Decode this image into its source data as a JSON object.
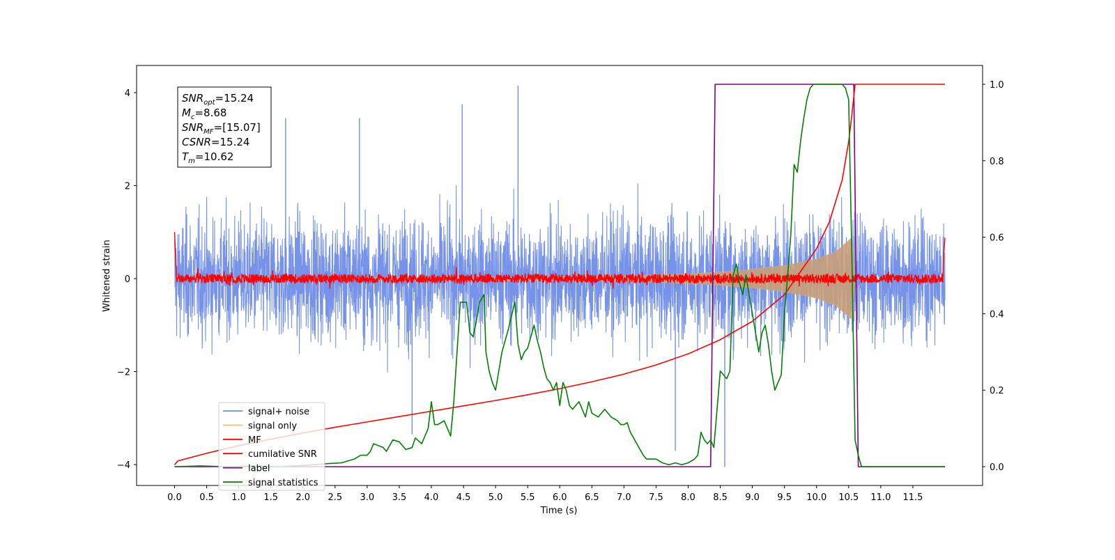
{
  "chart_data": {
    "type": "line",
    "xlabel": "Time (s)",
    "ylabel": "Whitened strain",
    "xlim": [
      -0.6,
      12.6
    ],
    "ylim": [
      -4.45,
      4.55
    ],
    "ylim_right": [
      -0.05,
      1.05
    ],
    "grid": false,
    "legend_position": "lower-left",
    "x_ticks": [
      "0.0",
      "0.5",
      "1.0",
      "1.5",
      "2.0",
      "2.5",
      "3.0",
      "3.5",
      "4.0",
      "4.5",
      "5.0",
      "5.5",
      "6.0",
      "6.5",
      "7.0",
      "7.5",
      "8.0",
      "8.5",
      "9.0",
      "9.5",
      "10.0",
      "10.5",
      "11.0",
      "11.5"
    ],
    "y_ticks_left": [
      "4",
      "2",
      "0",
      "−2",
      "−4"
    ],
    "y_ticks_right": [
      "1.0",
      "0.8",
      "0.6",
      "0.4",
      "0.2",
      "0.0"
    ],
    "info_box": {
      "snr_opt": {
        "sym": "SNR",
        "sub": "opt",
        "val": "=15.24"
      },
      "mc": {
        "sym": "M",
        "sub": "c",
        "val": "=8.68"
      },
      "snr_mf": {
        "sym": "SNR",
        "sub": "MF",
        "val": "=[15.07]"
      },
      "csnr": {
        "sym": "CSNR",
        "sub": "",
        "val": "=15.24"
      },
      "tm": {
        "sym": "T",
        "sub": "m",
        "val": "=10.62"
      }
    },
    "series": [
      {
        "name": "signal+ noise",
        "color": "#6f8de8",
        "axis": "left",
        "description_of_values": "white noise, amplitude about ±2 (peaks to ±4) over 0–12 s",
        "noise_peak_max": 4.15,
        "noise_peak_min": -3.7
      },
      {
        "name": "signal only",
        "color": "#fdbf6f",
        "axis": "left",
        "envelope_x": [
          0,
          6.0,
          7.0,
          8.0,
          8.5,
          9.0,
          9.5,
          10.0,
          10.3,
          10.55,
          10.6
        ],
        "envelope_y": [
          0.015,
          0.04,
          0.06,
          0.1,
          0.14,
          0.2,
          0.28,
          0.42,
          0.58,
          0.88,
          0.0
        ]
      },
      {
        "name": "MF",
        "color": "#ff0000",
        "axis": "left",
        "x": [
          0.0,
          0.02,
          0.04,
          11.96,
          11.98,
          12.0
        ],
        "y": [
          1.0,
          0.6,
          0.05,
          0.05,
          0.5,
          0.88
        ]
      },
      {
        "name": "cumilative SNR",
        "color": "#ff0000",
        "axis": "right",
        "x": [
          0.0,
          0.05,
          0.5,
          1.0,
          1.5,
          2.0,
          2.5,
          3.0,
          3.5,
          4.0,
          4.5,
          5.0,
          5.5,
          6.0,
          6.5,
          7.0,
          7.5,
          8.0,
          8.5,
          9.0,
          9.5,
          10.0,
          10.2,
          10.4,
          10.5,
          10.55,
          10.6,
          12.0
        ],
        "y": [
          0.005,
          0.015,
          0.035,
          0.055,
          0.072,
          0.088,
          0.103,
          0.117,
          0.131,
          0.145,
          0.159,
          0.173,
          0.188,
          0.204,
          0.222,
          0.242,
          0.266,
          0.295,
          0.332,
          0.38,
          0.45,
          0.57,
          0.64,
          0.75,
          0.85,
          0.92,
          1.0,
          1.0
        ]
      },
      {
        "name": "label",
        "color": "#800080",
        "axis": "right",
        "x": [
          0.0,
          8.35,
          8.42,
          10.58,
          10.65,
          12.0
        ],
        "y": [
          0.0,
          0.0,
          1.0,
          1.0,
          0.0,
          0.0
        ]
      },
      {
        "name": "signal statistics",
        "color": "#008000",
        "axis": "right",
        "x": [
          0.0,
          0.4,
          0.8,
          1.2,
          1.6,
          2.0,
          2.4,
          2.6,
          2.8,
          2.9,
          3.0,
          3.05,
          3.1,
          3.25,
          3.3,
          3.4,
          3.5,
          3.6,
          3.7,
          3.75,
          3.85,
          3.95,
          4.0,
          4.05,
          4.1,
          4.2,
          4.3,
          4.35,
          4.45,
          4.55,
          4.6,
          4.65,
          4.7,
          4.75,
          4.82,
          4.85,
          4.9,
          4.95,
          5.0,
          5.05,
          5.1,
          5.2,
          5.3,
          5.35,
          5.4,
          5.45,
          5.5,
          5.55,
          5.6,
          5.65,
          5.7,
          5.75,
          5.8,
          5.85,
          5.9,
          5.95,
          6.0,
          6.05,
          6.1,
          6.15,
          6.2,
          6.3,
          6.4,
          6.45,
          6.5,
          6.6,
          6.7,
          6.8,
          6.9,
          6.95,
          7.0,
          7.05,
          7.1,
          7.2,
          7.3,
          7.35,
          7.4,
          7.5,
          7.6,
          7.7,
          7.8,
          7.9,
          8.0,
          8.1,
          8.15,
          8.2,
          8.25,
          8.3,
          8.35,
          8.4,
          8.5,
          8.55,
          8.6,
          8.65,
          8.7,
          8.75,
          8.8,
          8.85,
          8.9,
          8.95,
          9.0,
          9.05,
          9.1,
          9.15,
          9.2,
          9.25,
          9.3,
          9.35,
          9.4,
          9.45,
          9.5,
          9.55,
          9.6,
          9.65,
          9.7,
          9.75,
          9.8,
          9.85,
          9.9,
          9.95,
          10.0,
          10.1,
          10.2,
          10.3,
          10.4,
          10.45,
          10.5,
          10.55,
          10.6,
          10.65,
          10.7,
          10.8,
          11.0,
          12.0
        ],
        "y": [
          0.0,
          0.002,
          0.0,
          0.002,
          0.0,
          0.003,
          0.008,
          0.01,
          0.02,
          0.03,
          0.03,
          0.04,
          0.06,
          0.05,
          0.04,
          0.07,
          0.065,
          0.045,
          0.05,
          0.075,
          0.06,
          0.1,
          0.17,
          0.11,
          0.11,
          0.12,
          0.08,
          0.17,
          0.43,
          0.43,
          0.35,
          0.34,
          0.38,
          0.43,
          0.45,
          0.3,
          0.25,
          0.22,
          0.2,
          0.25,
          0.3,
          0.36,
          0.43,
          0.32,
          0.28,
          0.3,
          0.31,
          0.34,
          0.37,
          0.33,
          0.3,
          0.26,
          0.23,
          0.22,
          0.2,
          0.22,
          0.16,
          0.22,
          0.2,
          0.16,
          0.15,
          0.17,
          0.13,
          0.17,
          0.14,
          0.13,
          0.15,
          0.13,
          0.12,
          0.11,
          0.11,
          0.115,
          0.09,
          0.06,
          0.03,
          0.02,
          0.02,
          0.02,
          0.01,
          0.005,
          0.01,
          0.005,
          0.01,
          0.02,
          0.03,
          0.09,
          0.07,
          0.06,
          0.07,
          0.05,
          0.25,
          0.24,
          0.23,
          0.25,
          0.5,
          0.53,
          0.48,
          0.45,
          0.5,
          0.45,
          0.4,
          0.35,
          0.3,
          0.35,
          0.37,
          0.32,
          0.25,
          0.2,
          0.22,
          0.24,
          0.4,
          0.5,
          0.61,
          0.79,
          0.77,
          0.85,
          0.91,
          0.96,
          0.99,
          1.0,
          1.0,
          1.0,
          1.0,
          1.0,
          1.0,
          0.99,
          0.96,
          0.55,
          0.07,
          0.03,
          0.0,
          0.0,
          0.0,
          0.0
        ]
      }
    ]
  }
}
